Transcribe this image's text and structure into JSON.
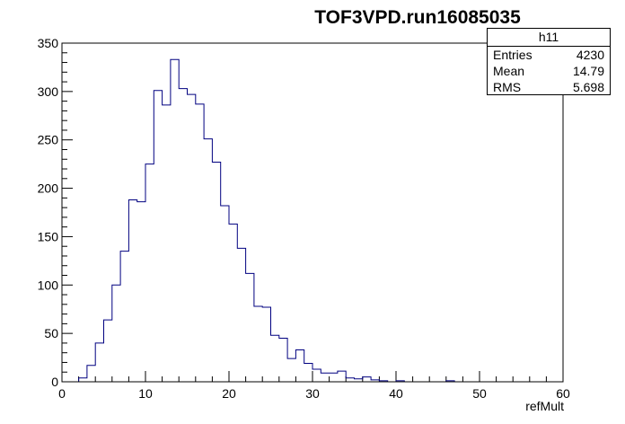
{
  "chart_data": {
    "type": "bar",
    "title": "TOF3VPD.run16085035",
    "xlabel": "refMult",
    "ylabel": "",
    "xlim": [
      0,
      60
    ],
    "ylim": [
      0,
      350
    ],
    "bin_width": 1,
    "x_ticks": [
      0,
      10,
      20,
      30,
      40,
      50,
      60
    ],
    "y_ticks": [
      0,
      50,
      100,
      150,
      200,
      250,
      300,
      350
    ],
    "line_color": "#000080",
    "stats": {
      "name": "h11",
      "entries_label": "Entries",
      "entries": "4230",
      "mean_label": "Mean",
      "mean": "14.79",
      "rms_label": "RMS",
      "rms": "5.698"
    },
    "bins": [
      {
        "x": 0,
        "y": 0
      },
      {
        "x": 1,
        "y": 0
      },
      {
        "x": 2,
        "y": 4
      },
      {
        "x": 3,
        "y": 17
      },
      {
        "x": 4,
        "y": 40
      },
      {
        "x": 5,
        "y": 64
      },
      {
        "x": 6,
        "y": 100
      },
      {
        "x": 7,
        "y": 135
      },
      {
        "x": 8,
        "y": 188
      },
      {
        "x": 9,
        "y": 186
      },
      {
        "x": 10,
        "y": 225
      },
      {
        "x": 11,
        "y": 301
      },
      {
        "x": 12,
        "y": 286
      },
      {
        "x": 13,
        "y": 333
      },
      {
        "x": 14,
        "y": 303
      },
      {
        "x": 15,
        "y": 297
      },
      {
        "x": 16,
        "y": 287
      },
      {
        "x": 17,
        "y": 251
      },
      {
        "x": 18,
        "y": 227
      },
      {
        "x": 19,
        "y": 182
      },
      {
        "x": 20,
        "y": 163
      },
      {
        "x": 21,
        "y": 138
      },
      {
        "x": 22,
        "y": 112
      },
      {
        "x": 23,
        "y": 78
      },
      {
        "x": 24,
        "y": 77
      },
      {
        "x": 25,
        "y": 48
      },
      {
        "x": 26,
        "y": 45
      },
      {
        "x": 27,
        "y": 24
      },
      {
        "x": 28,
        "y": 33
      },
      {
        "x": 29,
        "y": 19
      },
      {
        "x": 30,
        "y": 13
      },
      {
        "x": 31,
        "y": 9
      },
      {
        "x": 32,
        "y": 9
      },
      {
        "x": 33,
        "y": 11
      },
      {
        "x": 34,
        "y": 4
      },
      {
        "x": 35,
        "y": 3
      },
      {
        "x": 36,
        "y": 5
      },
      {
        "x": 37,
        "y": 2
      },
      {
        "x": 38,
        "y": 1
      },
      {
        "x": 39,
        "y": 0
      },
      {
        "x": 40,
        "y": 1
      },
      {
        "x": 41,
        "y": 0
      },
      {
        "x": 42,
        "y": 0
      },
      {
        "x": 43,
        "y": 0
      },
      {
        "x": 44,
        "y": 0
      },
      {
        "x": 45,
        "y": 0
      },
      {
        "x": 46,
        "y": 1
      },
      {
        "x": 47,
        "y": 0
      },
      {
        "x": 48,
        "y": 0
      },
      {
        "x": 49,
        "y": 0
      },
      {
        "x": 50,
        "y": 0
      },
      {
        "x": 51,
        "y": 0
      },
      {
        "x": 52,
        "y": 0
      },
      {
        "x": 53,
        "y": 0
      },
      {
        "x": 54,
        "y": 0
      },
      {
        "x": 55,
        "y": 0
      },
      {
        "x": 56,
        "y": 0
      },
      {
        "x": 57,
        "y": 0
      },
      {
        "x": 58,
        "y": 0
      },
      {
        "x": 59,
        "y": 0
      }
    ]
  }
}
